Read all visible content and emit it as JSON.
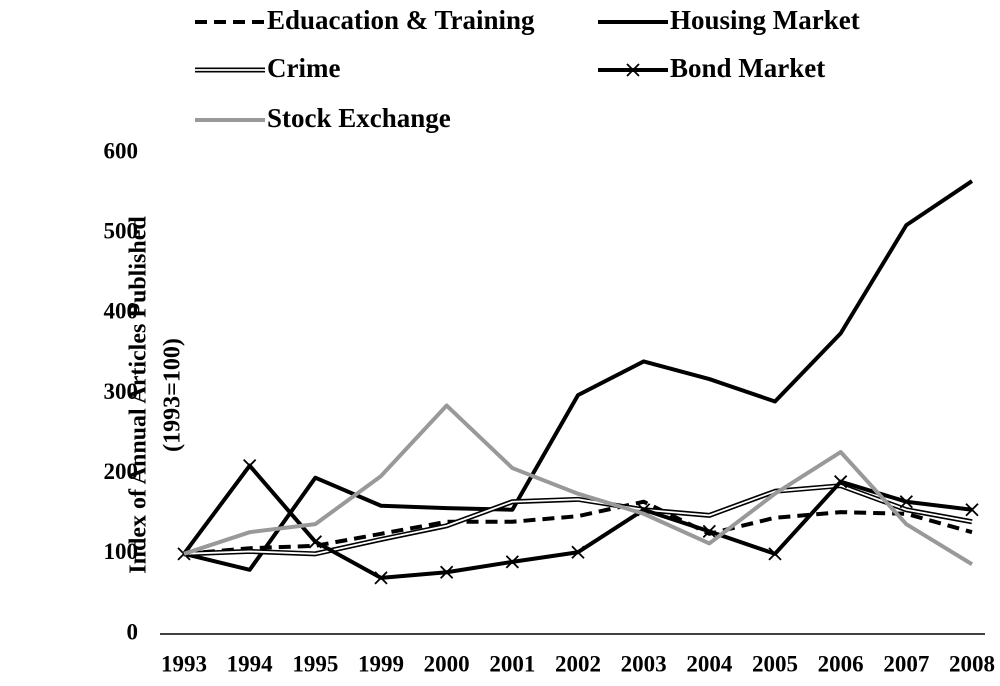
{
  "chart_data": {
    "type": "line",
    "ylabel": [
      "Index of Annual Articles Published",
      "(1993=100)"
    ],
    "categories": [
      "1993",
      "1994",
      "1995",
      "1999",
      "2000",
      "2001",
      "2002",
      "2003",
      "2004",
      "2005",
      "2006",
      "2007",
      "2008"
    ],
    "series": [
      {
        "name": "Eduacation & Training",
        "color": "#000000",
        "style": "dashed",
        "values": [
          100,
          107,
          110,
          125,
          140,
          140,
          147,
          165,
          125,
          145,
          152,
          150,
          127
        ]
      },
      {
        "name": "Housing Market",
        "color": "#000000",
        "style": "solid",
        "values": [
          100,
          80,
          195,
          160,
          157,
          155,
          298,
          340,
          318,
          290,
          375,
          510,
          565
        ]
      },
      {
        "name": "Crime",
        "color": "#000000",
        "style": "double",
        "values": [
          100,
          103,
          100,
          118,
          135,
          165,
          168,
          155,
          148,
          178,
          185,
          155,
          140
        ]
      },
      {
        "name": "Bond Market",
        "color": "#000000",
        "style": "solid",
        "marker": "x",
        "values": [
          100,
          210,
          115,
          70,
          77,
          90,
          102,
          155,
          128,
          100,
          190,
          165,
          155
        ]
      },
      {
        "name": "Stock Exchange",
        "color": "#999999",
        "style": "solid",
        "values": [
          100,
          127,
          137,
          197,
          285,
          207,
          175,
          150,
          113,
          175,
          227,
          137,
          87
        ]
      }
    ],
    "ylim": [
      0,
      600
    ],
    "yticks": [
      0,
      100,
      200,
      300,
      400,
      500,
      600
    ],
    "grid": false
  }
}
